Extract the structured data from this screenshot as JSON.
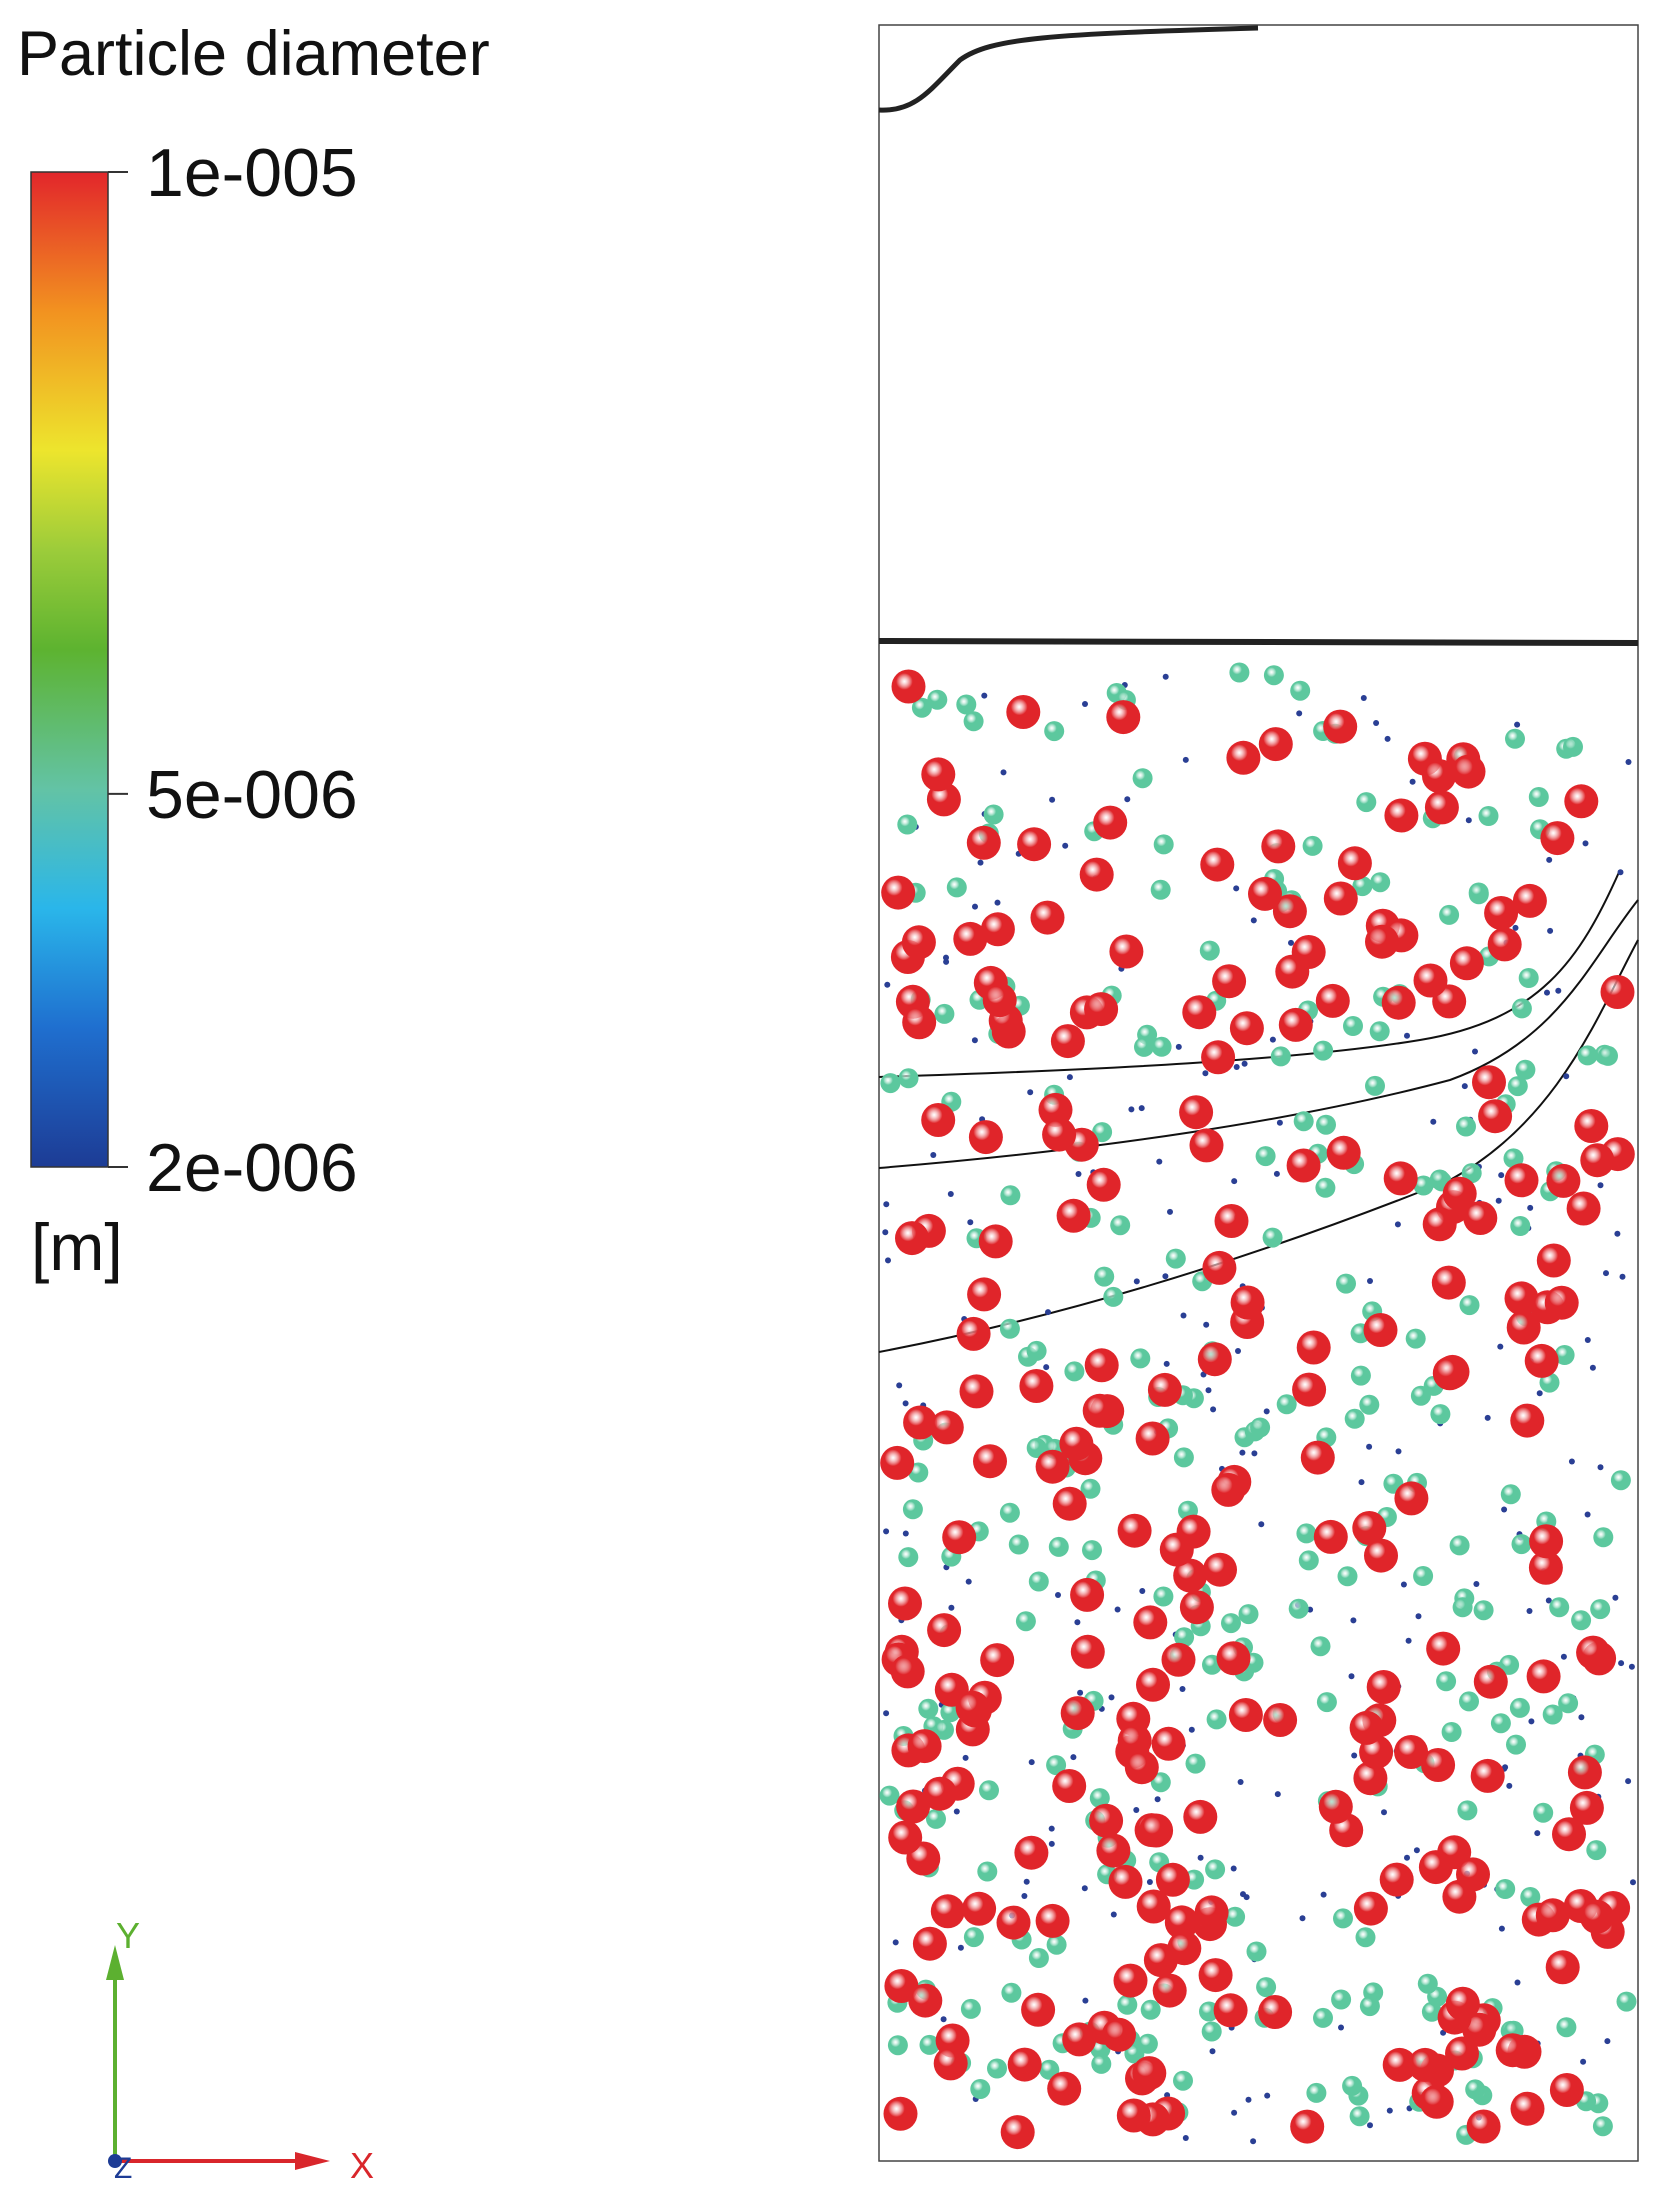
{
  "legend": {
    "title": "Particle diameter",
    "unit": "[m]",
    "clim": [
      2e-06,
      1e-05
    ],
    "ticks": [
      {
        "value": 1e-05,
        "label": "1e-005"
      },
      {
        "value": 5e-06,
        "label": "5e-006"
      },
      {
        "value": 2e-06,
        "label": "2e-006"
      }
    ]
  },
  "particles": {
    "diameters": [
      1e-05,
      5e-06,
      2e-06
    ],
    "colors": [
      "#e0252a",
      "#5cc89e",
      "#2a3f94"
    ]
  },
  "axes": {
    "x": "X",
    "y": "Y",
    "z": "Z"
  }
}
